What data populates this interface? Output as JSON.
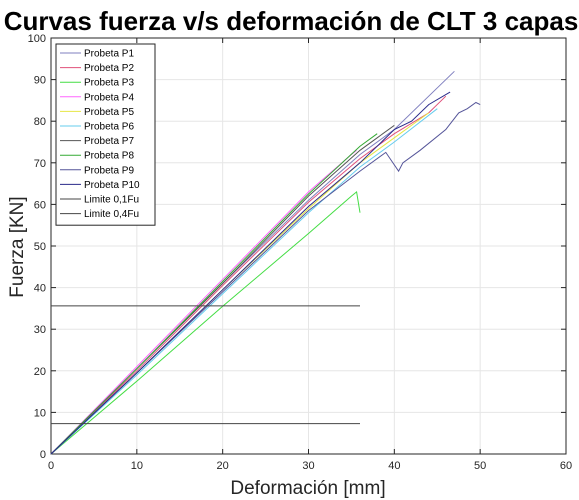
{
  "chart_data": {
    "type": "line",
    "title": "Curvas fuerza v/s deformación de CLT 3 capas",
    "xlabel": "Deformación [mm]",
    "ylabel": "Fuerza [KN]",
    "xlim": [
      0,
      60
    ],
    "ylim": [
      0,
      100
    ],
    "xticks": [
      0,
      10,
      20,
      30,
      40,
      50,
      60
    ],
    "yticks": [
      0,
      10,
      20,
      30,
      40,
      50,
      60,
      70,
      80,
      90,
      100
    ],
    "grid": true,
    "legend_position": "top-left",
    "series": [
      {
        "name": "Probeta P1",
        "color": "#7f7fbf",
        "x": [
          0,
          10,
          20,
          30,
          36,
          40,
          44,
          47
        ],
        "y": [
          0,
          20.5,
          41,
          61,
          72,
          78,
          86,
          92
        ]
      },
      {
        "name": "Probeta P2",
        "color": "#e0507a",
        "x": [
          0,
          10,
          20,
          30,
          36,
          40,
          44,
          46
        ],
        "y": [
          0,
          20,
          40.5,
          60.5,
          71,
          77,
          82,
          86
        ]
      },
      {
        "name": "Probeta P3",
        "color": "#44dd44",
        "x": [
          0,
          10,
          20,
          30,
          35,
          35.6,
          36
        ],
        "y": [
          0,
          17.5,
          35.5,
          53,
          62,
          63,
          58
        ]
      },
      {
        "name": "Probeta P4",
        "color": "#ff66ff",
        "x": [
          0,
          10,
          20,
          30,
          35,
          35.6
        ],
        "y": [
          0,
          21,
          42,
          63,
          72,
          73
        ]
      },
      {
        "name": "Probeta P5",
        "color": "#e6e644",
        "x": [
          0,
          10,
          20,
          30,
          36,
          40,
          44
        ],
        "y": [
          0,
          19.5,
          39.5,
          59,
          70,
          76,
          82
        ]
      },
      {
        "name": "Probeta P6",
        "color": "#66ccee",
        "x": [
          0,
          10,
          20,
          30,
          36,
          40,
          45
        ],
        "y": [
          0,
          19,
          38.5,
          58,
          69,
          75,
          83
        ]
      },
      {
        "name": "Probeta P7",
        "color": "#555555",
        "x": [
          0,
          10,
          20,
          30,
          36,
          38,
          40
        ],
        "y": [
          0,
          20.5,
          41,
          62,
          73,
          76,
          79
        ]
      },
      {
        "name": "Probeta P8",
        "color": "#33aa33",
        "x": [
          0,
          10,
          20,
          30,
          36,
          38
        ],
        "y": [
          0,
          20.5,
          41.5,
          62.5,
          74,
          77
        ]
      },
      {
        "name": "Probeta P9",
        "color": "#555599",
        "x": [
          0,
          10,
          20,
          30,
          36,
          39,
          40.5,
          41,
          43,
          46,
          47.5,
          48.5,
          49.5,
          50
        ],
        "y": [
          0,
          19.5,
          39,
          58.5,
          68,
          72.5,
          68,
          70,
          73,
          78,
          82,
          83,
          84.5,
          84
        ]
      },
      {
        "name": "Probeta P10",
        "color": "#2a2a8a",
        "x": [
          0,
          10,
          20,
          30,
          36,
          38,
          40,
          42,
          44,
          46.5
        ],
        "y": [
          0,
          19.5,
          39.5,
          59.5,
          70,
          74,
          78,
          80,
          84,
          87
        ]
      },
      {
        "name": "Limite 0,1Fu",
        "color": "#444444",
        "x": [
          0,
          36
        ],
        "y": [
          7.3,
          7.3
        ]
      },
      {
        "name": "Limite 0,4Fu",
        "color": "#444444",
        "x": [
          0,
          36
        ],
        "y": [
          35.6,
          35.6
        ]
      }
    ]
  }
}
